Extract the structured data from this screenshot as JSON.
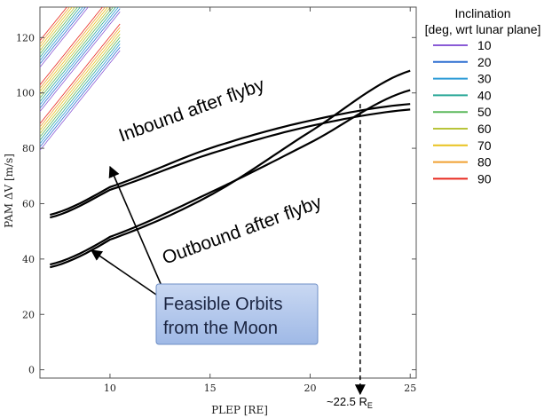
{
  "chart_data": {
    "type": "line",
    "xlabel": "PLEP [RE]",
    "ylabel": "PAM ΔV [m/s]",
    "xlim": [
      6.5,
      25.3
    ],
    "ylim": [
      -3,
      131
    ],
    "xticks": [
      10,
      15,
      20,
      25
    ],
    "yticks": [
      0,
      20,
      40,
      60,
      80,
      100,
      120
    ],
    "legend": {
      "title_line1": "Inclination",
      "title_line2": "[deg, wrt lunar plane]",
      "entries": [
        {
          "label": "10",
          "color": "#8a5bd6"
        },
        {
          "label": "20",
          "color": "#2f6fd1"
        },
        {
          "label": "30",
          "color": "#2a9ad6"
        },
        {
          "label": "40",
          "color": "#2aa898"
        },
        {
          "label": "50",
          "color": "#5cb85c"
        },
        {
          "label": "60",
          "color": "#b8c43a"
        },
        {
          "label": "70",
          "color": "#e8c21e"
        },
        {
          "label": "80",
          "color": "#f0a030"
        },
        {
          "label": "90",
          "color": "#e8281e"
        }
      ]
    },
    "series": [
      {
        "name": "Inbound after flyby (feasible, upper)",
        "x": [
          7,
          10,
          15,
          20,
          25
        ],
        "y": [
          56,
          66,
          80,
          90,
          96
        ]
      },
      {
        "name": "Inbound after flyby (feasible, lower)",
        "x": [
          7,
          10,
          15,
          20,
          25
        ],
        "y": [
          55,
          65,
          78,
          88,
          94
        ]
      },
      {
        "name": "Outbound after flyby (feasible, upper)",
        "x": [
          7,
          10,
          15,
          20,
          25
        ],
        "y": [
          38,
          48,
          64,
          82,
          101
        ]
      },
      {
        "name": "Outbound after flyby (feasible, lower)",
        "x": [
          7,
          10,
          15,
          20,
          25
        ],
        "y": [
          37,
          47,
          63,
          86,
          108
        ]
      }
    ],
    "marker_x": 22.5,
    "annotations": {
      "inbound": "Inbound after flyby",
      "outbound": "Outbound after flyby",
      "callout_line1": "Feasible Orbits",
      "callout_line2": "from the Moon",
      "marker_label": "~22.5 R",
      "marker_sub": "E"
    }
  }
}
